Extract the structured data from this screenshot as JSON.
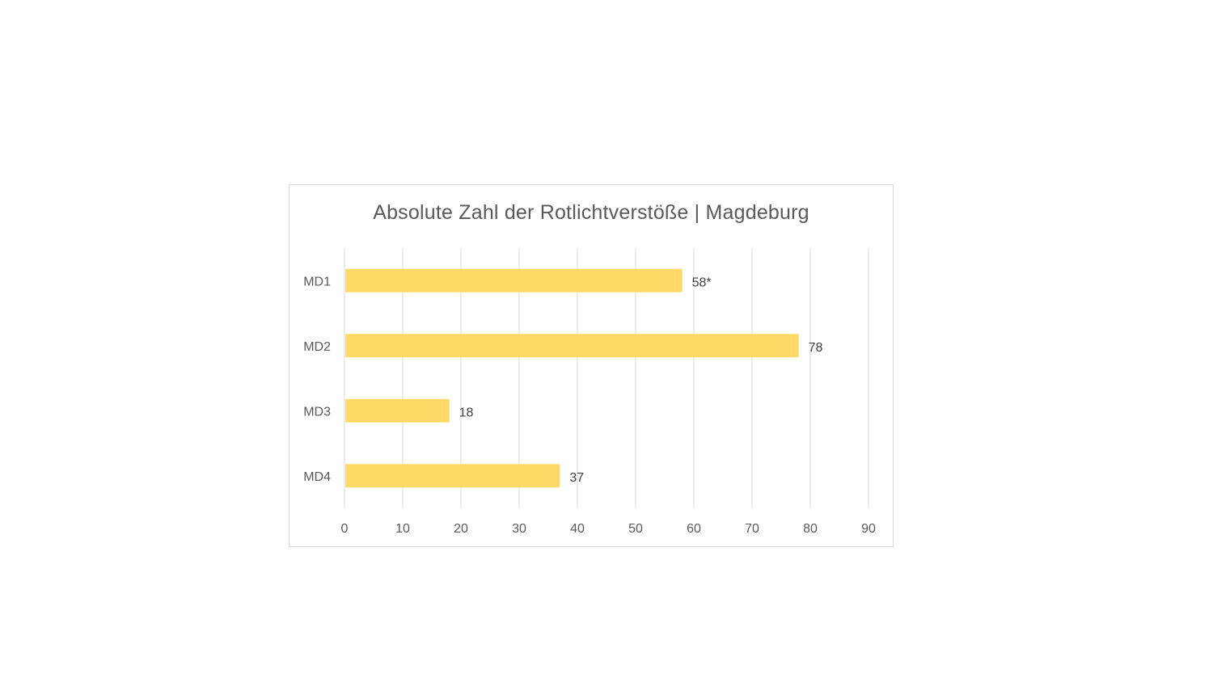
{
  "chart_data": {
    "type": "bar",
    "orientation": "horizontal",
    "title": "Absolute Zahl der Rotlichtverstöße | Magdeburg",
    "categories": [
      "MD1",
      "MD2",
      "MD3",
      "MD4"
    ],
    "values": [
      58,
      78,
      18,
      37
    ],
    "data_labels": [
      "58*",
      "78",
      "18",
      "37"
    ],
    "xlim": [
      0,
      90
    ],
    "x_ticks": [
      "0",
      "10",
      "20",
      "30",
      "40",
      "50",
      "60",
      "70",
      "80",
      "90"
    ],
    "grid": true,
    "bar_color": "#ffd966",
    "xlabel": "",
    "ylabel": ""
  }
}
